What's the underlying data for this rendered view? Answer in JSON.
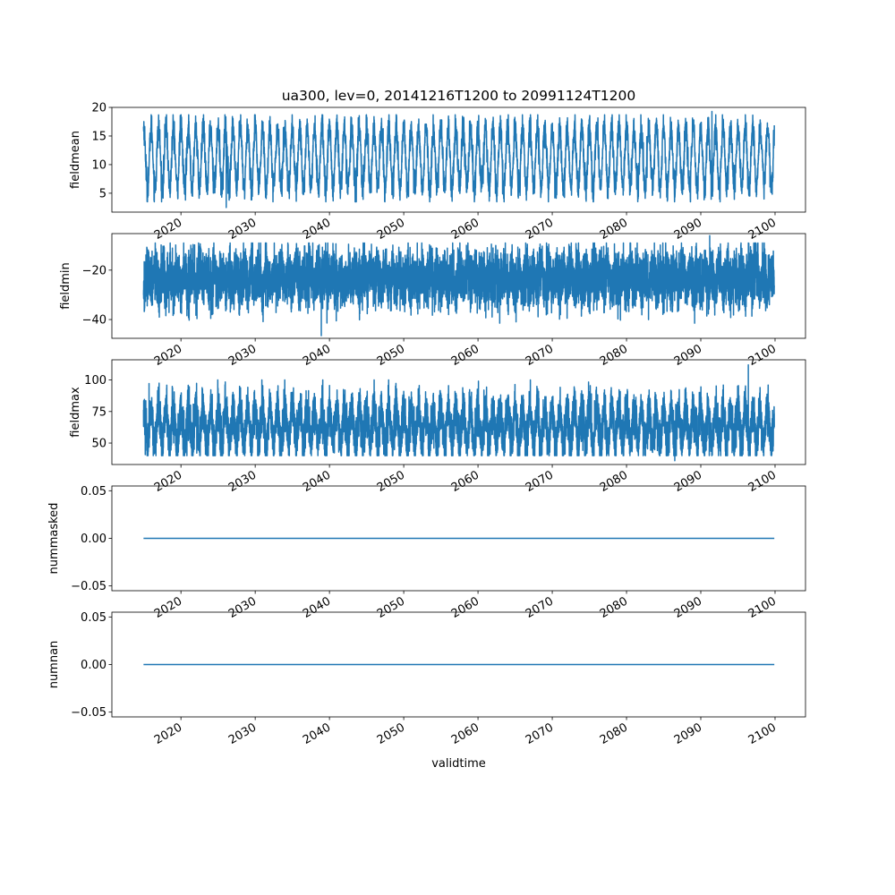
{
  "figure": {
    "title": "ua300, lev=0, 20141216T1200 to 20991124T1200",
    "xlabel": "validtime",
    "line_color": "#1f77b4"
  },
  "chart_data": [
    {
      "type": "line",
      "ylabel": "fieldmean",
      "x_range": [
        2014.96,
        2099.9
      ],
      "xlim": [
        2010.7,
        2104.1
      ],
      "ylim": [
        1.7,
        20.0
      ],
      "yticks": [
        5,
        10,
        15,
        20
      ],
      "ytick_labels": [
        "5",
        "10",
        "15",
        "20"
      ],
      "xticks": [
        2020,
        2030,
        2040,
        2050,
        2060,
        2070,
        2080,
        2090,
        2100
      ],
      "xtick_labels": [
        "2020",
        "2030",
        "2040",
        "2050",
        "2060",
        "2070",
        "2080",
        "2090",
        "2100"
      ],
      "seasonal": true,
      "approx_range": [
        2.5,
        19.3
      ],
      "peak_max": {
        "x": 2091.5,
        "y": 19.3
      },
      "trough_min": {
        "x": 2026.1,
        "y": 2.5
      },
      "show_xtick_labels": true
    },
    {
      "type": "line",
      "ylabel": "fieldmin",
      "x_range": [
        2014.96,
        2099.9
      ],
      "xlim": [
        2010.7,
        2104.1
      ],
      "ylim": [
        -47.6,
        -5.2
      ],
      "yticks": [
        -40,
        -20
      ],
      "ytick_labels": [
        "−40",
        "−20"
      ],
      "xticks": [
        2020,
        2030,
        2040,
        2050,
        2060,
        2070,
        2080,
        2090,
        2100
      ],
      "xtick_labels": [
        "2020",
        "2030",
        "2040",
        "2050",
        "2060",
        "2070",
        "2080",
        "2090",
        "2100"
      ],
      "seasonal": false,
      "approx_range": [
        -46.5,
        -6.0
      ],
      "peak_max": {
        "x": 2091.2,
        "y": -6.0
      },
      "trough_min": {
        "x": 2038.9,
        "y": -46.5
      },
      "show_xtick_labels": true
    },
    {
      "type": "line",
      "ylabel": "fieldmax",
      "x_range": [
        2014.96,
        2099.9
      ],
      "xlim": [
        2010.7,
        2104.1
      ],
      "ylim": [
        33.0,
        116.0
      ],
      "yticks": [
        50,
        75,
        100
      ],
      "ytick_labels": [
        "50",
        "75",
        "100"
      ],
      "xticks": [
        2020,
        2030,
        2040,
        2050,
        2060,
        2070,
        2080,
        2090,
        2100
      ],
      "xtick_labels": [
        "2020",
        "2030",
        "2040",
        "2050",
        "2060",
        "2070",
        "2080",
        "2090",
        "2100"
      ],
      "seasonal": true,
      "approx_range": [
        36.0,
        112.0
      ],
      "peak_max": {
        "x": 2096.4,
        "y": 112.0
      },
      "trough_min": {
        "x": 2086.5,
        "y": 36.0
      },
      "show_xtick_labels": true
    },
    {
      "type": "line",
      "ylabel": "nummasked",
      "x_range": [
        2014.96,
        2099.9
      ],
      "xlim": [
        2010.7,
        2104.1
      ],
      "ylim": [
        -0.055,
        0.055
      ],
      "yticks": [
        -0.05,
        0.0,
        0.05
      ],
      "ytick_labels": [
        "−0.05",
        "0.00",
        "0.05"
      ],
      "xticks": [
        2020,
        2030,
        2040,
        2050,
        2060,
        2070,
        2080,
        2090,
        2100
      ],
      "xtick_labels": [
        "2020",
        "2030",
        "2040",
        "2050",
        "2060",
        "2070",
        "2080",
        "2090",
        "2100"
      ],
      "constant_value": 0.0,
      "show_xtick_labels": true
    },
    {
      "type": "line",
      "ylabel": "numnan",
      "x_range": [
        2014.96,
        2099.9
      ],
      "xlim": [
        2010.7,
        2104.1
      ],
      "ylim": [
        -0.055,
        0.055
      ],
      "yticks": [
        -0.05,
        0.0,
        0.05
      ],
      "ytick_labels": [
        "−0.05",
        "0.00",
        "0.05"
      ],
      "xticks": [
        2020,
        2030,
        2040,
        2050,
        2060,
        2070,
        2080,
        2090,
        2100
      ],
      "xtick_labels": [
        "2020",
        "2030",
        "2040",
        "2050",
        "2060",
        "2070",
        "2080",
        "2090",
        "2100"
      ],
      "constant_value": 0.0,
      "show_xtick_labels": true
    }
  ]
}
